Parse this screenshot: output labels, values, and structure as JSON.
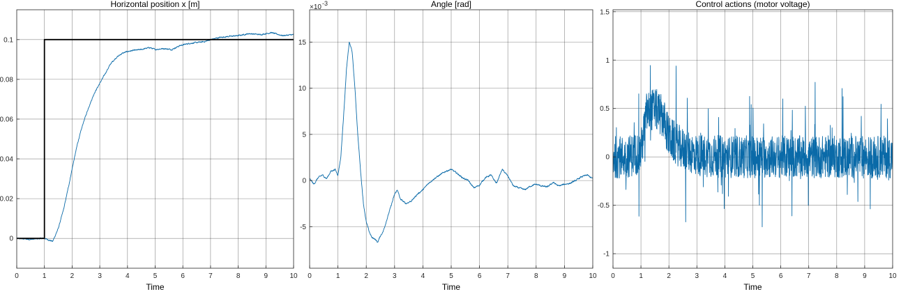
{
  "chart_data": [
    {
      "type": "line",
      "title": "Horizontal position x [m]",
      "xlabel": "Time",
      "ylabel": "",
      "xlim": [
        0,
        10
      ],
      "ylim": [
        -0.015,
        0.115
      ],
      "xticks": [
        0,
        1,
        2,
        3,
        4,
        5,
        6,
        7,
        8,
        9,
        10
      ],
      "yticks": [
        0,
        0.02,
        0.04,
        0.06,
        0.08,
        0.1
      ],
      "ytick_labels": [
        "0",
        "0.02",
        "0.04",
        "0.06",
        "0.08",
        "0.1"
      ],
      "grid": true,
      "series": [
        {
          "color": "#0a6aa8",
          "noise": 0.0006,
          "x": [
            0,
            0.5,
            0.9,
            1.0,
            1.2,
            1.3,
            1.5,
            1.7,
            1.9,
            2.0,
            2.2,
            2.4,
            2.6,
            2.8,
            3.0,
            3.2,
            3.4,
            3.6,
            3.8,
            4.0,
            4.2,
            4.5,
            4.8,
            5.0,
            5.3,
            5.6,
            5.9,
            6.2,
            6.5,
            6.8,
            7.0,
            7.3,
            7.6,
            8.0,
            8.4,
            8.8,
            9.2,
            9.6,
            10.0
          ],
          "y": [
            0,
            -0.0005,
            0,
            0,
            -0.001,
            -0.0015,
            0.005,
            0.015,
            0.028,
            0.035,
            0.048,
            0.058,
            0.066,
            0.073,
            0.078,
            0.083,
            0.088,
            0.091,
            0.093,
            0.094,
            0.0945,
            0.095,
            0.096,
            0.095,
            0.0955,
            0.095,
            0.097,
            0.098,
            0.0985,
            0.099,
            0.1,
            0.101,
            0.1015,
            0.102,
            0.103,
            0.1025,
            0.1035,
            0.102,
            0.1025
          ]
        },
        {
          "color": "#000000",
          "width": 1.8,
          "x": [
            0,
            1,
            1,
            10
          ],
          "y": [
            0,
            0,
            0.1,
            0.1
          ]
        }
      ]
    },
    {
      "type": "line",
      "title": "Angle [rad]",
      "xlabel": "Time",
      "ylabel": "",
      "exponent_label": "×10",
      "exponent_power": "-3",
      "xlim": [
        0,
        10
      ],
      "ylim": [
        -9.5,
        18.5
      ],
      "xticks": [
        0,
        1,
        2,
        3,
        4,
        5,
        6,
        7,
        8,
        9,
        10
      ],
      "yticks": [
        -5,
        0,
        5,
        10,
        15
      ],
      "ytick_labels": [
        "-5",
        "0",
        "5",
        "10",
        "15"
      ],
      "grid": true,
      "series": [
        {
          "color": "#0a6aa8",
          "noise": 0.15,
          "x": [
            0,
            0.15,
            0.3,
            0.45,
            0.6,
            0.75,
            0.9,
            1.0,
            1.1,
            1.2,
            1.3,
            1.4,
            1.5,
            1.6,
            1.7,
            1.8,
            1.9,
            2.0,
            2.1,
            2.2,
            2.3,
            2.4,
            2.5,
            2.6,
            2.7,
            2.8,
            2.9,
            3.0,
            3.1,
            3.2,
            3.4,
            3.6,
            3.8,
            4.0,
            4.2,
            4.4,
            4.6,
            4.8,
            5.0,
            5.2,
            5.4,
            5.6,
            5.8,
            6.0,
            6.2,
            6.4,
            6.6,
            6.8,
            7.0,
            7.2,
            7.4,
            7.6,
            7.8,
            8.0,
            8.2,
            8.4,
            8.6,
            8.8,
            9.0,
            9.2,
            9.4,
            9.6,
            9.8,
            10.0
          ],
          "y": [
            0.2,
            -0.4,
            0.3,
            0.6,
            0.2,
            1.0,
            1.2,
            0.6,
            2.5,
            7,
            12,
            15,
            14,
            10,
            5,
            1,
            -2.5,
            -4.5,
            -5.5,
            -6.2,
            -6.3,
            -6.7,
            -6.0,
            -5.5,
            -4.5,
            -3.5,
            -2.5,
            -1.5,
            -1.0,
            -2.0,
            -2.5,
            -2.2,
            -1.5,
            -1.0,
            -0.3,
            0.2,
            0.6,
            1.0,
            1.2,
            0.8,
            0.3,
            0.0,
            -0.8,
            -0.5,
            0.3,
            0.6,
            -0.3,
            1.2,
            0.5,
            -0.6,
            -0.8,
            -1.0,
            -0.6,
            -0.4,
            -0.6,
            -0.7,
            -0.2,
            -0.6,
            -0.4,
            -0.3,
            0.0,
            0.4,
            0.6,
            0.2
          ]
        }
      ]
    },
    {
      "type": "line",
      "title": "Control actions (motor voltage)",
      "xlabel": "Time",
      "ylabel": "",
      "xlim": [
        0,
        10
      ],
      "ylim": [
        -1.15,
        1.52
      ],
      "xticks": [
        0,
        1,
        2,
        3,
        4,
        5,
        6,
        7,
        8,
        9,
        10
      ],
      "yticks": [
        -1,
        -0.5,
        0,
        0.5,
        1,
        1.5
      ],
      "ytick_labels": [
        "-1",
        "-0.5",
        "0",
        "0.5",
        "1",
        "1.5"
      ],
      "grid": true,
      "series": [
        {
          "color": "#0a6aa8",
          "noise": 0.22,
          "spikes": 0.6,
          "x": [
            0,
            0.5,
            1.0,
            1.2,
            1.5,
            1.8,
            2.0,
            2.5,
            3.0,
            4.0,
            5.0,
            6.0,
            7.0,
            8.0,
            9.0,
            10.0
          ],
          "y": [
            0,
            0,
            0.05,
            0.45,
            0.5,
            0.4,
            0.2,
            0.08,
            0.02,
            0,
            0,
            0,
            0,
            0,
            0,
            0
          ]
        }
      ]
    }
  ]
}
